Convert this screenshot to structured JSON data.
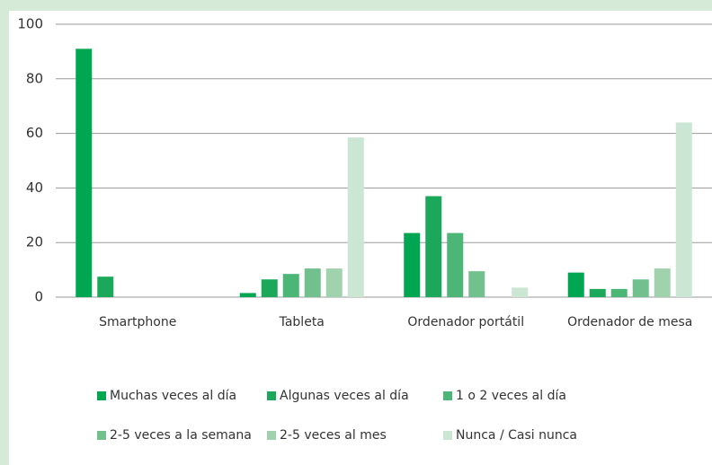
{
  "chart_data": {
    "type": "bar",
    "categories": [
      "Smartphone",
      "Tableta",
      "Ordenador portátil",
      "Ordenador de mesa"
    ],
    "series": [
      {
        "name": "Muchas veces al día",
        "color": "#00a651",
        "values": [
          91,
          1.5,
          23.5,
          9
        ]
      },
      {
        "name": "Algunas veces al día",
        "color": "#1ba85a",
        "values": [
          7.5,
          6.5,
          37,
          3
        ]
      },
      {
        "name": "1 o 2 veces al día",
        "color": "#4cb677",
        "values": [
          0,
          8.5,
          23.5,
          3
        ]
      },
      {
        "name": "2-5 veces a la semana",
        "color": "#72c08e",
        "values": [
          0,
          10.5,
          9.5,
          6.5
        ]
      },
      {
        "name": "2-5 veces al mes",
        "color": "#a0d3ad",
        "values": [
          0,
          10.5,
          0,
          10.5
        ]
      },
      {
        "name": "Nunca / Casi nunca",
        "color": "#cbe6d3",
        "values": [
          0,
          58.5,
          3.5,
          64
        ]
      }
    ],
    "ylim": [
      0,
      100
    ],
    "yticks": [
      0,
      20,
      40,
      60,
      80,
      100
    ],
    "grid": true,
    "legend": "bottom"
  }
}
